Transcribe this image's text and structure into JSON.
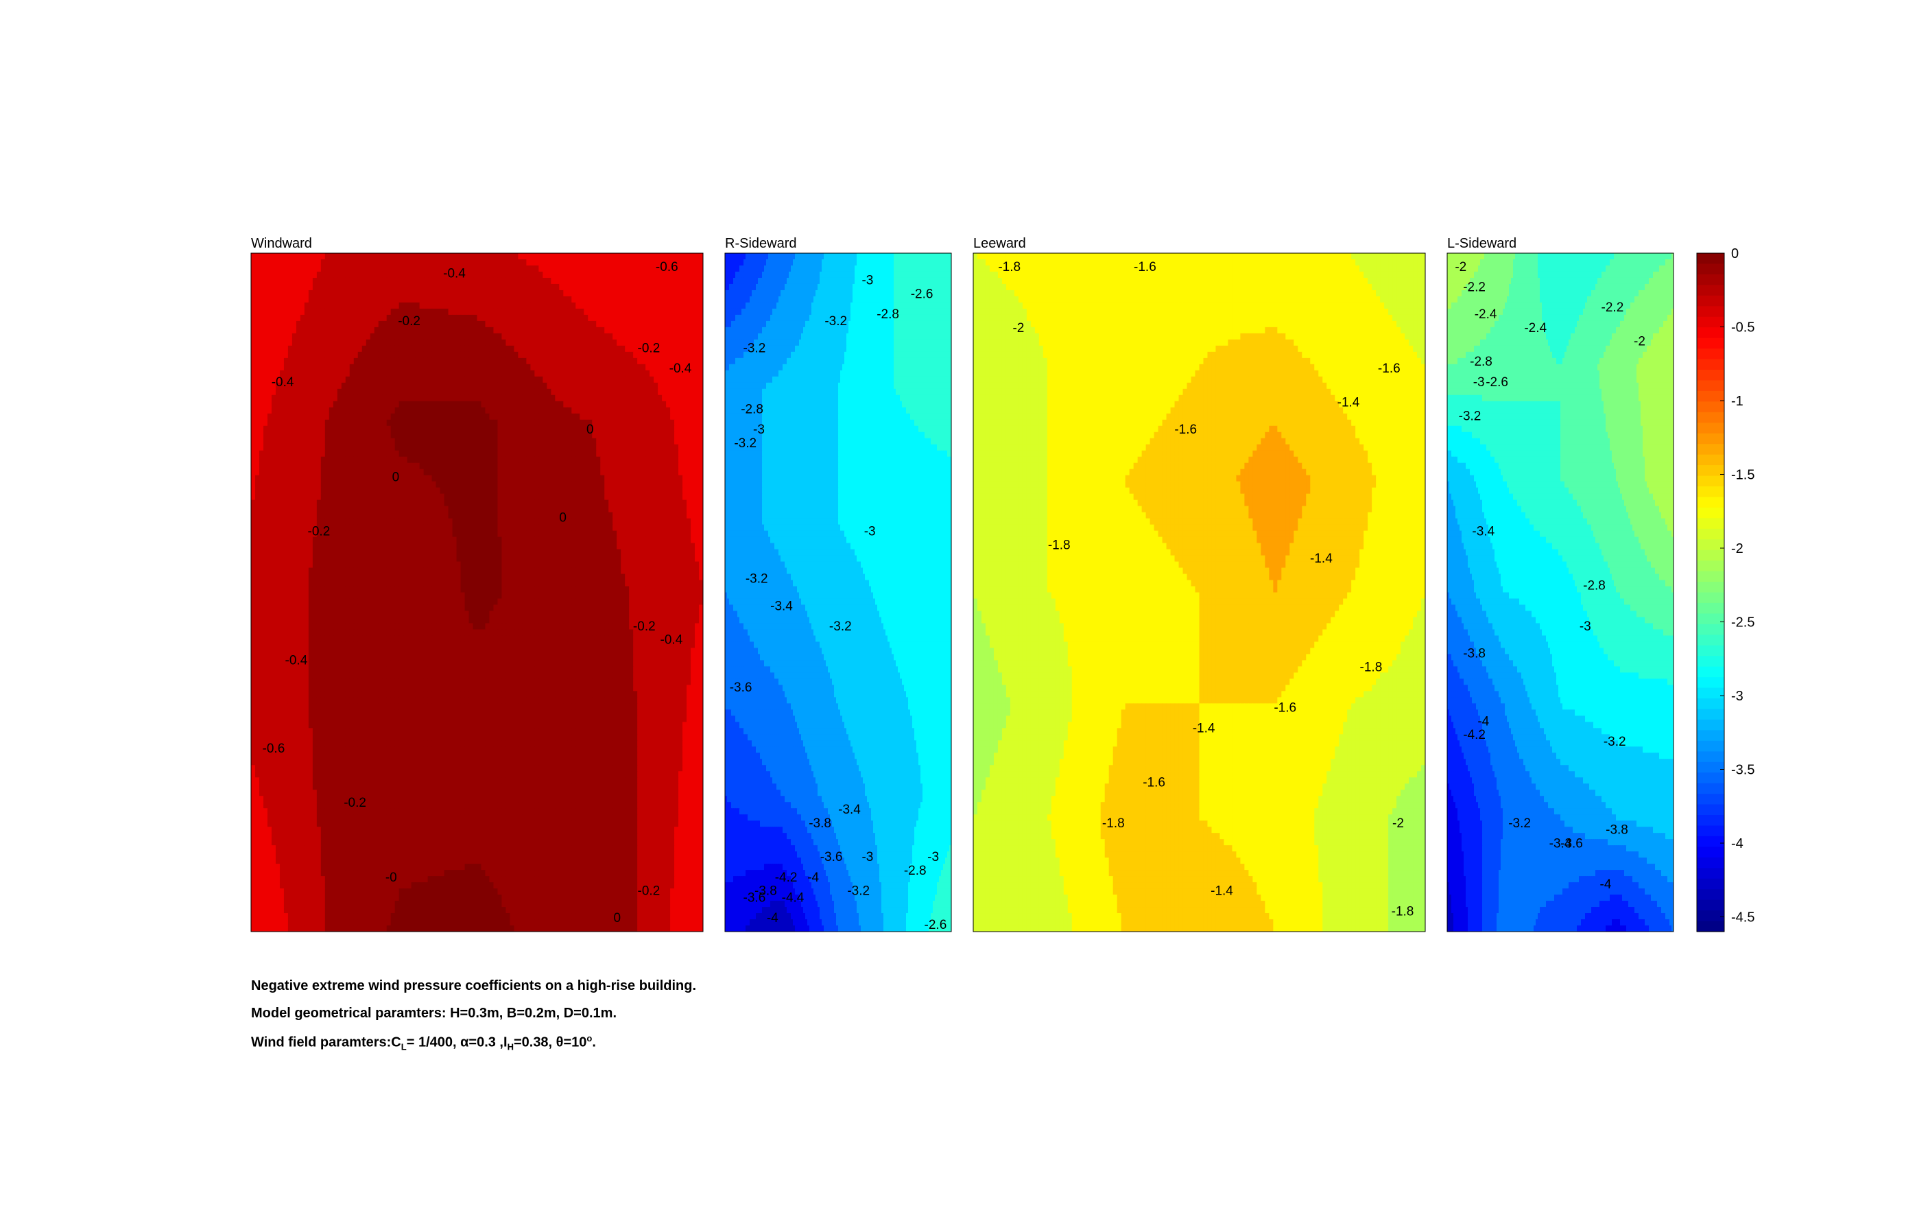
{
  "chart_data": {
    "type": "heatmap",
    "title": "",
    "colorbar": {
      "colormap": "jet",
      "range": [
        -4.6,
        0
      ],
      "ticks": [
        0,
        -0.5,
        -1,
        -1.5,
        -2,
        -2.5,
        -3,
        -3.5,
        -4,
        -4.5
      ],
      "tick_labels": [
        "0",
        "-0.5",
        "-1",
        "-1.5",
        "-2",
        "-2.5",
        "-3",
        "-3.5",
        "-4",
        "-4.5"
      ]
    },
    "panels": [
      {
        "name": "Windward",
        "ny": 5,
        "nx": 7,
        "grid": [
          [
            -0.6,
            -0.4,
            -0.3,
            -0.35,
            -0.45,
            -0.6,
            -0.6
          ],
          [
            -0.45,
            -0.2,
            0.05,
            0.05,
            -0.15,
            -0.25,
            -0.5
          ],
          [
            -0.35,
            -0.15,
            -0.2,
            0.05,
            -0.1,
            -0.2,
            -0.4
          ],
          [
            -0.4,
            -0.15,
            -0.15,
            -0.15,
            -0.15,
            -0.15,
            -0.5
          ],
          [
            -0.6,
            -0.2,
            0.05,
            0.1,
            -0.1,
            -0.15,
            -0.6
          ]
        ],
        "levels": [
          -0.6,
          -0.4,
          -0.2,
          0
        ],
        "contour_labels": [
          {
            "text": "-0.4",
            "x": 0.45,
            "y": 0.03
          },
          {
            "text": "-0.6",
            "x": 0.92,
            "y": 0.02
          },
          {
            "text": "-0.2",
            "x": 0.35,
            "y": 0.1
          },
          {
            "text": "-0.2",
            "x": 0.88,
            "y": 0.14
          },
          {
            "text": "-0.4",
            "x": 0.95,
            "y": 0.17
          },
          {
            "text": "-0.4",
            "x": 0.07,
            "y": 0.19
          },
          {
            "text": "0",
            "x": 0.75,
            "y": 0.26
          },
          {
            "text": "0",
            "x": 0.32,
            "y": 0.33
          },
          {
            "text": "0",
            "x": 0.69,
            "y": 0.39
          },
          {
            "text": "-0.2",
            "x": 0.15,
            "y": 0.41
          },
          {
            "text": "-0.2",
            "x": 0.87,
            "y": 0.55
          },
          {
            "text": "-0.4",
            "x": 0.93,
            "y": 0.57
          },
          {
            "text": "-0.4",
            "x": 0.1,
            "y": 0.6
          },
          {
            "text": "-0.6",
            "x": 0.05,
            "y": 0.73
          },
          {
            "text": "-0.2",
            "x": 0.23,
            "y": 0.81
          },
          {
            "text": "-0",
            "x": 0.31,
            "y": 0.92
          },
          {
            "text": "-0.2",
            "x": 0.88,
            "y": 0.94
          },
          {
            "text": "0",
            "x": 0.81,
            "y": 0.98
          }
        ]
      },
      {
        "name": "R-Sideward",
        "ny": 6,
        "nx": 5,
        "grid": [
          [
            -4.0,
            -3.5,
            -3.1,
            -2.8,
            -2.6
          ],
          [
            -3.3,
            -3.15,
            -3.0,
            -2.8,
            -2.7
          ],
          [
            -3.3,
            -3.15,
            -3.0,
            -2.9,
            -2.9
          ],
          [
            -3.5,
            -3.35,
            -3.15,
            -3.0,
            -2.9
          ],
          [
            -3.8,
            -3.6,
            -3.3,
            -3.1,
            -2.9
          ],
          [
            -4.1,
            -4.4,
            -3.6,
            -3.1,
            -2.6
          ]
        ],
        "levels": [
          -4.4,
          -4.2,
          -4,
          -3.8,
          -3.6,
          -3.4,
          -3.2,
          -3,
          -2.8,
          -2.6
        ],
        "contour_labels": [
          {
            "text": "-3",
            "x": 0.63,
            "y": 0.04
          },
          {
            "text": "-2.6",
            "x": 0.87,
            "y": 0.06
          },
          {
            "text": "-3.2",
            "x": 0.49,
            "y": 0.1
          },
          {
            "text": "-2.8",
            "x": 0.72,
            "y": 0.09
          },
          {
            "text": "-3.2",
            "x": 0.13,
            "y": 0.14
          },
          {
            "text": "-2.8",
            "x": 0.12,
            "y": 0.23
          },
          {
            "text": "-3",
            "x": 0.15,
            "y": 0.26
          },
          {
            "text": "-3.2",
            "x": 0.09,
            "y": 0.28
          },
          {
            "text": "-3",
            "x": 0.64,
            "y": 0.41
          },
          {
            "text": "-3.2",
            "x": 0.14,
            "y": 0.48
          },
          {
            "text": "-3.4",
            "x": 0.25,
            "y": 0.52
          },
          {
            "text": "-3.2",
            "x": 0.51,
            "y": 0.55
          },
          {
            "text": "-3.6",
            "x": 0.07,
            "y": 0.64
          },
          {
            "text": "-3.4",
            "x": 0.55,
            "y": 0.82
          },
          {
            "text": "-3.8",
            "x": 0.42,
            "y": 0.84
          },
          {
            "text": "-3.6",
            "x": 0.47,
            "y": 0.89
          },
          {
            "text": "-3",
            "x": 0.63,
            "y": 0.89
          },
          {
            "text": "-2.8",
            "x": 0.84,
            "y": 0.91
          },
          {
            "text": "-3",
            "x": 0.92,
            "y": 0.89
          },
          {
            "text": "-4.2",
            "x": 0.27,
            "y": 0.92
          },
          {
            "text": "-4",
            "x": 0.39,
            "y": 0.92
          },
          {
            "text": "-3.8",
            "x": 0.18,
            "y": 0.94
          },
          {
            "text": "-4.4",
            "x": 0.3,
            "y": 0.95
          },
          {
            "text": "-3.2",
            "x": 0.59,
            "y": 0.94
          },
          {
            "text": "-3.6",
            "x": 0.13,
            "y": 0.95
          },
          {
            "text": "-4",
            "x": 0.21,
            "y": 0.98
          },
          {
            "text": "-2.6",
            "x": 0.93,
            "y": 0.99
          }
        ]
      },
      {
        "name": "Leeward",
        "ny": 7,
        "nx": 7,
        "grid": [
          [
            -1.8,
            -1.7,
            -1.6,
            -1.7,
            -1.8,
            -1.8,
            -1.9
          ],
          [
            -2.0,
            -1.8,
            -1.7,
            -1.6,
            -1.5,
            -1.7,
            -1.8
          ],
          [
            -2.0,
            -1.8,
            -1.6,
            -1.5,
            -1.3,
            -1.5,
            -1.8
          ],
          [
            -2.0,
            -1.8,
            -1.7,
            -1.6,
            -1.4,
            -1.6,
            -1.8
          ],
          [
            -2.1,
            -1.9,
            -1.6,
            -1.6,
            -1.6,
            -1.8,
            -1.9
          ],
          [
            -2.0,
            -1.8,
            -1.5,
            -1.6,
            -1.7,
            -1.9,
            -2.1
          ],
          [
            -2.0,
            -1.9,
            -1.6,
            -1.4,
            -1.6,
            -1.9,
            -2.1
          ]
        ],
        "levels": [
          -2,
          -1.8,
          -1.6,
          -1.4
        ],
        "contour_labels": [
          {
            "text": "-1.8",
            "x": 0.08,
            "y": 0.02
          },
          {
            "text": "-1.6",
            "x": 0.38,
            "y": 0.02
          },
          {
            "text": "-2",
            "x": 0.1,
            "y": 0.11
          },
          {
            "text": "-1.6",
            "x": 0.92,
            "y": 0.17
          },
          {
            "text": "-1.4",
            "x": 0.83,
            "y": 0.22
          },
          {
            "text": "-1.6",
            "x": 0.47,
            "y": 0.26
          },
          {
            "text": "-1.8",
            "x": 0.19,
            "y": 0.43
          },
          {
            "text": "-1.4",
            "x": 0.77,
            "y": 0.45
          },
          {
            "text": "-1.8",
            "x": 0.88,
            "y": 0.61
          },
          {
            "text": "-1.6",
            "x": 0.69,
            "y": 0.67
          },
          {
            "text": "-1.4",
            "x": 0.51,
            "y": 0.7
          },
          {
            "text": "-1.6",
            "x": 0.4,
            "y": 0.78
          },
          {
            "text": "-1.8",
            "x": 0.31,
            "y": 0.84
          },
          {
            "text": "-2",
            "x": 0.94,
            "y": 0.84
          },
          {
            "text": "-1.4",
            "x": 0.55,
            "y": 0.94
          },
          {
            "text": "-1.8",
            "x": 0.95,
            "y": 0.97
          }
        ]
      },
      {
        "name": "L-Sideward",
        "ny": 7,
        "nx": 5,
        "grid": [
          [
            -2.0,
            -2.3,
            -2.8,
            -2.6,
            -2.4
          ],
          [
            -2.4,
            -2.5,
            -2.6,
            -2.3,
            -2.0
          ],
          [
            -3.2,
            -2.8,
            -2.6,
            -2.4,
            -2.0
          ],
          [
            -3.4,
            -3.0,
            -2.9,
            -2.6,
            -2.4
          ],
          [
            -3.8,
            -3.4,
            -3.0,
            -2.9,
            -2.9
          ],
          [
            -4.1,
            -3.6,
            -3.4,
            -3.2,
            -3.1
          ],
          [
            -4.3,
            -3.5,
            -3.7,
            -4.1,
            -3.6
          ]
        ],
        "levels": [
          -4.2,
          -4,
          -3.8,
          -3.6,
          -3.4,
          -3.2,
          -3,
          -2.8,
          -2.6,
          -2.4,
          -2.2,
          -2
        ],
        "contour_labels": [
          {
            "text": "-2",
            "x": 0.06,
            "y": 0.02
          },
          {
            "text": "-2.2",
            "x": 0.12,
            "y": 0.05
          },
          {
            "text": "-2.4",
            "x": 0.17,
            "y": 0.09
          },
          {
            "text": "-2.4",
            "x": 0.39,
            "y": 0.11
          },
          {
            "text": "-2.2",
            "x": 0.73,
            "y": 0.08
          },
          {
            "text": "-2",
            "x": 0.85,
            "y": 0.13
          },
          {
            "text": "-2.8",
            "x": 0.15,
            "y": 0.16
          },
          {
            "text": "-3",
            "x": 0.14,
            "y": 0.19
          },
          {
            "text": "-2.6",
            "x": 0.22,
            "y": 0.19
          },
          {
            "text": "-3.2",
            "x": 0.1,
            "y": 0.24
          },
          {
            "text": "-3.4",
            "x": 0.16,
            "y": 0.41
          },
          {
            "text": "-2.8",
            "x": 0.65,
            "y": 0.49
          },
          {
            "text": "-3",
            "x": 0.61,
            "y": 0.55
          },
          {
            "text": "-3.8",
            "x": 0.12,
            "y": 0.59
          },
          {
            "text": "-4",
            "x": 0.16,
            "y": 0.69
          },
          {
            "text": "-4.2",
            "x": 0.12,
            "y": 0.71
          },
          {
            "text": "-3.2",
            "x": 0.74,
            "y": 0.72
          },
          {
            "text": "-3.2",
            "x": 0.32,
            "y": 0.84
          },
          {
            "text": "-3.8",
            "x": 0.75,
            "y": 0.85
          },
          {
            "text": "-3.4",
            "x": 0.5,
            "y": 0.87
          },
          {
            "text": "-3.6",
            "x": 0.55,
            "y": 0.87
          },
          {
            "text": "-4",
            "x": 0.7,
            "y": 0.93
          }
        ]
      }
    ]
  },
  "caption": {
    "line1": "Negative extreme wind pressure coefficients on a high-rise building.",
    "line2": "Model geometrical paramters: H=0.3m, B=0.2m, D=0.1m.",
    "line3_prefix": "Wind field paramters:C",
    "line3_cl_sub": "L",
    "line3_mid1": "= 1/400, α=0.3 ,I",
    "line3_ih_sub": "H",
    "line3_mid2": "=0.38, θ=10",
    "line3_sup": "o",
    "line3_end": "."
  }
}
